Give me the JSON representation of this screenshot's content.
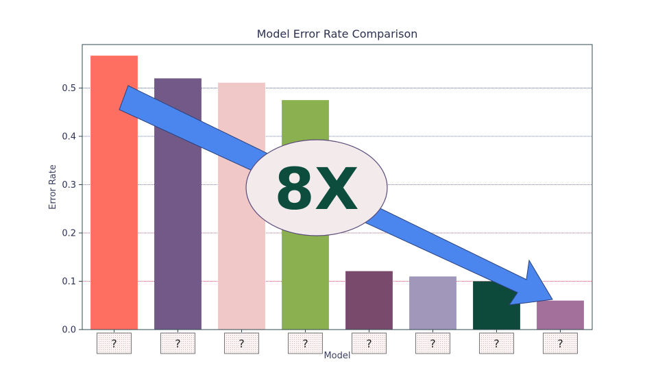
{
  "chart_data": {
    "type": "bar",
    "title": "Model Error Rate Comparison",
    "xlabel": "Model",
    "ylabel": "Error Rate",
    "categories": [
      "?",
      "?",
      "?",
      "?",
      "?",
      "?",
      "?",
      "?"
    ],
    "values": [
      0.567,
      0.52,
      0.511,
      0.475,
      0.121,
      0.11,
      0.1,
      0.06
    ],
    "colors": [
      "#ff6f61",
      "#725987",
      "#f0c8c8",
      "#8bb04f",
      "#7a4a6c",
      "#a097bb",
      "#0e4a3c",
      "#a2709a"
    ],
    "ylim": [
      0,
      0.59
    ],
    "yticks": [
      0.0,
      0.1,
      0.2,
      0.3,
      0.4,
      0.5
    ],
    "ytick_labels": [
      "0.0",
      "0.1",
      "0.2",
      "0.3",
      "0.4",
      "0.5"
    ],
    "grid": true,
    "grid_colors": [
      "#c43a3a",
      "#8a3050",
      "#5a4a8a",
      "#4a5a9a",
      "#3a4a8a"
    ],
    "annotation": {
      "text": "8X",
      "arrow_color": "#4a86ee",
      "badge_fill": "#f3eaec",
      "text_color": "#0d4d3e"
    }
  }
}
